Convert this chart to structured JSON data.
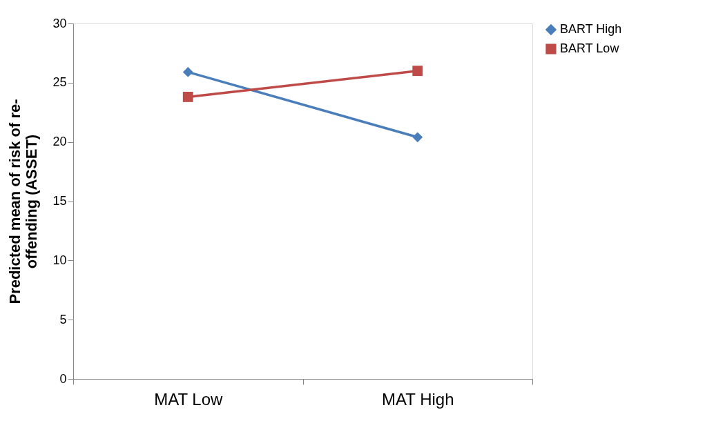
{
  "chart_data": {
    "type": "line",
    "ylabel": "Predicted mean of risk of re-offending (ASSET)",
    "categories": [
      "MAT Low",
      "MAT High"
    ],
    "ylim": [
      0,
      30
    ],
    "yticks": [
      0,
      5,
      10,
      15,
      20,
      25,
      30
    ],
    "grid": false,
    "legend": "right",
    "series": [
      {
        "name": "BART High",
        "color": "#4a7ebb",
        "marker": "diamond",
        "values": [
          25.9,
          20.4
        ]
      },
      {
        "name": "BART Low",
        "color": "#be4b48",
        "marker": "square",
        "values": [
          23.8,
          26.0
        ]
      }
    ]
  }
}
